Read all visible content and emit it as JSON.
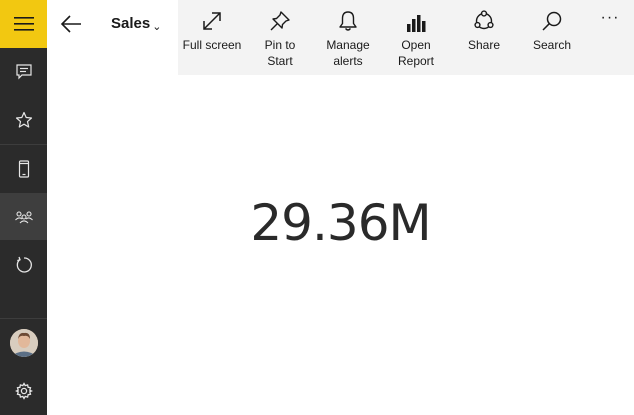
{
  "header": {
    "title": "Sales",
    "title_chevron": "⌄"
  },
  "toolbar": {
    "items": [
      {
        "label": "Full screen",
        "icon": "full-screen-icon"
      },
      {
        "label": "Pin to Start",
        "icon": "pin-icon"
      },
      {
        "label": "Manage alerts",
        "icon": "bell-icon"
      },
      {
        "label": "Open Report",
        "icon": "bar-chart-icon"
      },
      {
        "label": "Share",
        "icon": "share-icon"
      },
      {
        "label": "Search",
        "icon": "search-icon"
      }
    ],
    "more": "···"
  },
  "sidebar": {
    "items": [
      {
        "icon": "hamburger-icon"
      },
      {
        "icon": "comment-icon"
      },
      {
        "icon": "star-icon"
      },
      {
        "icon": "phone-icon"
      },
      {
        "icon": "workspaces-icon",
        "active": true
      },
      {
        "icon": "refresh-icon"
      },
      {
        "icon": "avatar"
      },
      {
        "icon": "gear-icon"
      }
    ]
  },
  "tile": {
    "value": "29.36M"
  },
  "colors": {
    "accent": "#f2c811",
    "rail": "#2b2b2b",
    "toolbar_bg": "#f3f3f3"
  }
}
